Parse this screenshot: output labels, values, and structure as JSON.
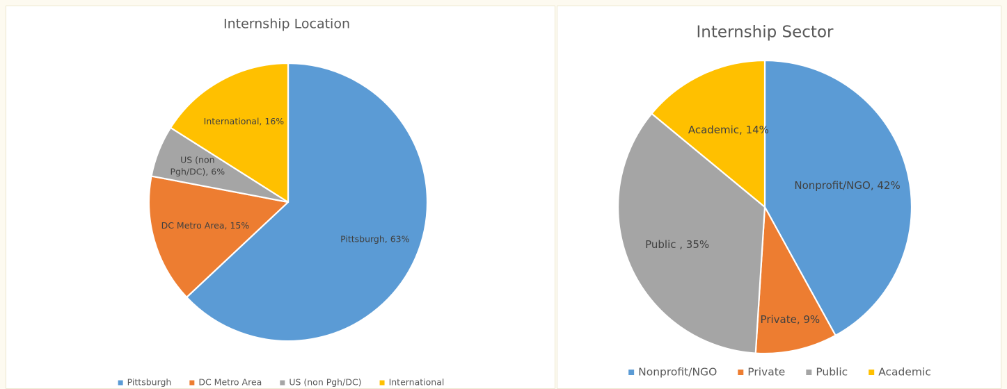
{
  "chart_data": [
    {
      "type": "pie",
      "title": "Internship Location",
      "categories": [
        "Pittsburgh",
        "DC Metro Area",
        "US (non Pgh/DC)",
        "International"
      ],
      "values": [
        63,
        15,
        6,
        16
      ],
      "data_labels": [
        "Pittsburgh, 63%",
        "DC Metro Area, 15%",
        [
          "US (non",
          "Pgh/DC), 6%"
        ],
        "International, 16%"
      ],
      "colors": [
        "#5b9bd5",
        "#ed7d31",
        "#a5a5a5",
        "#ffc000"
      ],
      "legend": "bottom",
      "unit": "%"
    },
    {
      "type": "pie",
      "title": "Internship Sector",
      "categories": [
        "Nonprofit/NGO",
        "Private",
        "Public",
        "Academic"
      ],
      "values": [
        42,
        9,
        35,
        14
      ],
      "data_labels": [
        "Nonprofit/NGO, 42%",
        "Private, 9%",
        "Public , 35%",
        "Academic, 14%"
      ],
      "colors": [
        "#5b9bd5",
        "#ed7d31",
        "#a5a5a5",
        "#ffc000"
      ],
      "legend": "bottom",
      "unit": "%"
    }
  ]
}
